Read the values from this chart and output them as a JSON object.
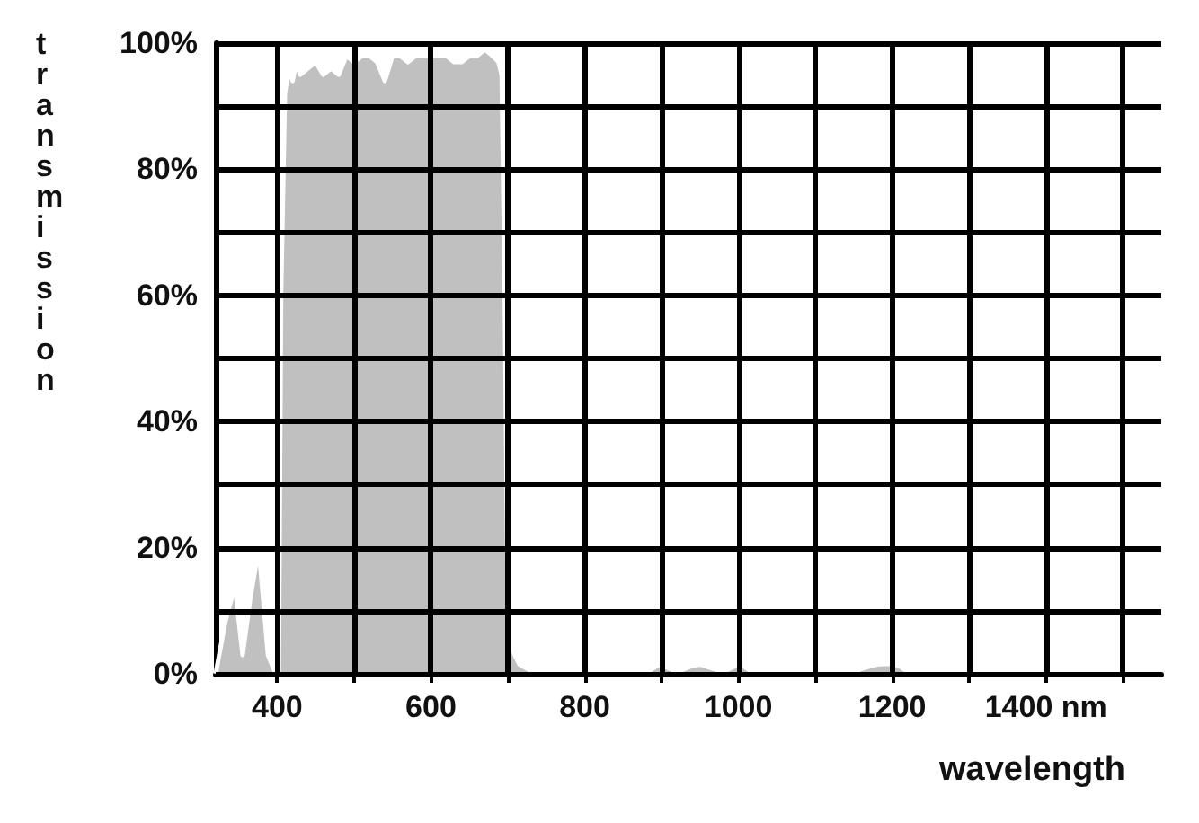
{
  "chart_data": {
    "type": "area",
    "xlabel": "wavelength",
    "ylabel": "transmission",
    "x": [
      320,
      332,
      345,
      355,
      365,
      376,
      388,
      398,
      402,
      405,
      410,
      415,
      420,
      425,
      430,
      440,
      450,
      460,
      470,
      480,
      490,
      500,
      510,
      520,
      530,
      540,
      550,
      560,
      570,
      580,
      590,
      600,
      610,
      620,
      630,
      640,
      650,
      660,
      670,
      680,
      688,
      692,
      696,
      700,
      705,
      715,
      730,
      760,
      800,
      880,
      893,
      900,
      907,
      920,
      938,
      950,
      962,
      980,
      995,
      1005,
      1015,
      1030,
      1150,
      1165,
      1180,
      1195,
      1210,
      1220,
      1300,
      1550
    ],
    "series": [
      {
        "color": "#c0c0c0",
        "values": [
          0,
          8,
          14,
          3,
          12,
          20,
          3,
          0,
          0,
          60,
          92,
          96,
          94,
          97,
          95,
          96,
          97,
          95,
          96,
          95,
          98,
          97,
          98,
          98,
          97,
          94,
          98,
          98,
          97,
          98,
          98,
          98,
          98,
          98,
          97,
          97,
          98,
          98,
          99,
          98,
          97,
          95,
          60,
          10,
          4,
          1.5,
          0.5,
          0.3,
          0.2,
          0.2,
          1.2,
          1.5,
          1,
          0.3,
          1.2,
          1.5,
          1,
          0.3,
          1.2,
          1.4,
          0.5,
          0.2,
          0.3,
          1,
          1.5,
          1.6,
          1.2,
          0.3,
          0.2,
          0.2
        ]
      }
    ],
    "xlim": [
      320,
      1550
    ],
    "xticks": [
      400,
      {
        "value": 500,
        "label": null
      },
      600,
      {
        "value": 700,
        "label": null
      },
      800,
      {
        "value": 900,
        "label": null
      },
      1000,
      {
        "value": 1100,
        "label": null
      },
      1200,
      {
        "value": 1300,
        "label": null
      },
      {
        "value": 1400,
        "label": "1400 nm"
      },
      {
        "value": 1500,
        "label": null
      }
    ],
    "ylim": [
      0,
      100
    ],
    "yticks": [
      {
        "value": 0,
        "label": "0%"
      },
      {
        "value": 10,
        "label": null
      },
      {
        "value": 20,
        "label": "20%"
      },
      {
        "value": 30,
        "label": null
      },
      {
        "value": 40,
        "label": "40%"
      },
      {
        "value": 50,
        "label": null
      },
      {
        "value": 60,
        "label": "60%"
      },
      {
        "value": 70,
        "label": null
      },
      {
        "value": 80,
        "label": "80%"
      },
      {
        "value": 90,
        "label": null
      },
      {
        "value": 100,
        "label": "100%"
      }
    ],
    "grid": true,
    "marker": "none"
  }
}
